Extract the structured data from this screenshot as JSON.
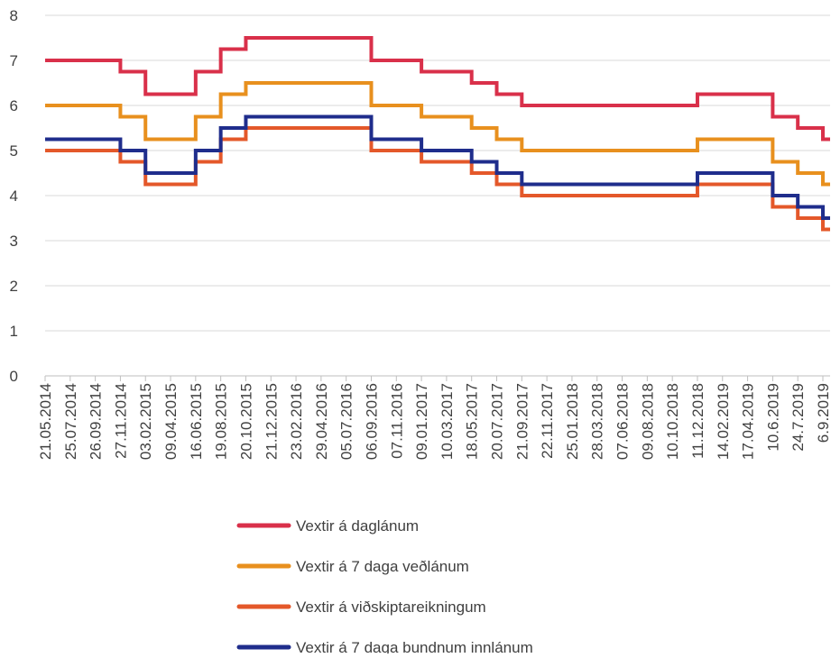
{
  "chart_data": {
    "type": "step-line",
    "categories": [
      "21.05.2014",
      "25.07.2014",
      "26.09.2014",
      "27.11.2014",
      "03.02.2015",
      "09.04.2015",
      "16.06.2015",
      "19.08.2015",
      "20.10.2015",
      "21.12.2015",
      "23.02.2016",
      "29.04.2016",
      "05.07.2016",
      "06.09.2016",
      "07.11.2016",
      "09.01.2017",
      "10.03.2017",
      "18.05.2017",
      "20.07.2017",
      "21.09.2017",
      "22.11.2017",
      "25.01.2018",
      "28.03.2018",
      "07.06.2018",
      "09.08.2018",
      "10.10.2018",
      "11.12.2018",
      "14.02.2019",
      "17.04.2019",
      "10.6.2019",
      "24.7.2019",
      "6.9.2019"
    ],
    "ylim": [
      0,
      8
    ],
    "yticks": [
      0,
      1,
      2,
      3,
      4,
      5,
      6,
      7,
      8
    ],
    "grid": true,
    "series": [
      {
        "name": "Vextir á daglánum",
        "color": "#d9304a",
        "values": [
          7,
          7,
          7,
          6.75,
          6.25,
          6.25,
          6.75,
          7.25,
          7.5,
          7.5,
          7.5,
          7.5,
          7.5,
          7,
          7,
          6.75,
          6.75,
          6.5,
          6.25,
          6,
          6,
          6,
          6,
          6,
          6,
          6,
          6.25,
          6.25,
          6.25,
          5.75,
          5.5,
          5.25
        ]
      },
      {
        "name": "Vextir á 7 daga veðlánum",
        "color": "#e8901e",
        "values": [
          6,
          6,
          6,
          5.75,
          5.25,
          5.25,
          5.75,
          6.25,
          6.5,
          6.5,
          6.5,
          6.5,
          6.5,
          6,
          6,
          5.75,
          5.75,
          5.5,
          5.25,
          5,
          5,
          5,
          5,
          5,
          5,
          5,
          5.25,
          5.25,
          5.25,
          4.75,
          4.5,
          4.25
        ]
      },
      {
        "name": "Vextir á viðskiptareikningum",
        "color": "#e4582a",
        "values": [
          5,
          5,
          5,
          4.75,
          4.25,
          4.25,
          4.75,
          5.25,
          5.5,
          5.5,
          5.5,
          5.5,
          5.5,
          5,
          5,
          4.75,
          4.75,
          4.5,
          4.25,
          4,
          4,
          4,
          4,
          4,
          4,
          4,
          4.25,
          4.25,
          4.25,
          3.75,
          3.5,
          3.25
        ]
      },
      {
        "name": "Vextir á 7 daga bundnum innlánum",
        "color": "#1f2d8c",
        "values": [
          5.25,
          5.25,
          5.25,
          5,
          4.5,
          4.5,
          5,
          5.5,
          5.75,
          5.75,
          5.75,
          5.75,
          5.75,
          5.25,
          5.25,
          5,
          5,
          4.75,
          4.5,
          4.25,
          4.25,
          4.25,
          4.25,
          4.25,
          4.25,
          4.25,
          4.5,
          4.5,
          4.5,
          4,
          3.75,
          3.5
        ]
      }
    ]
  }
}
